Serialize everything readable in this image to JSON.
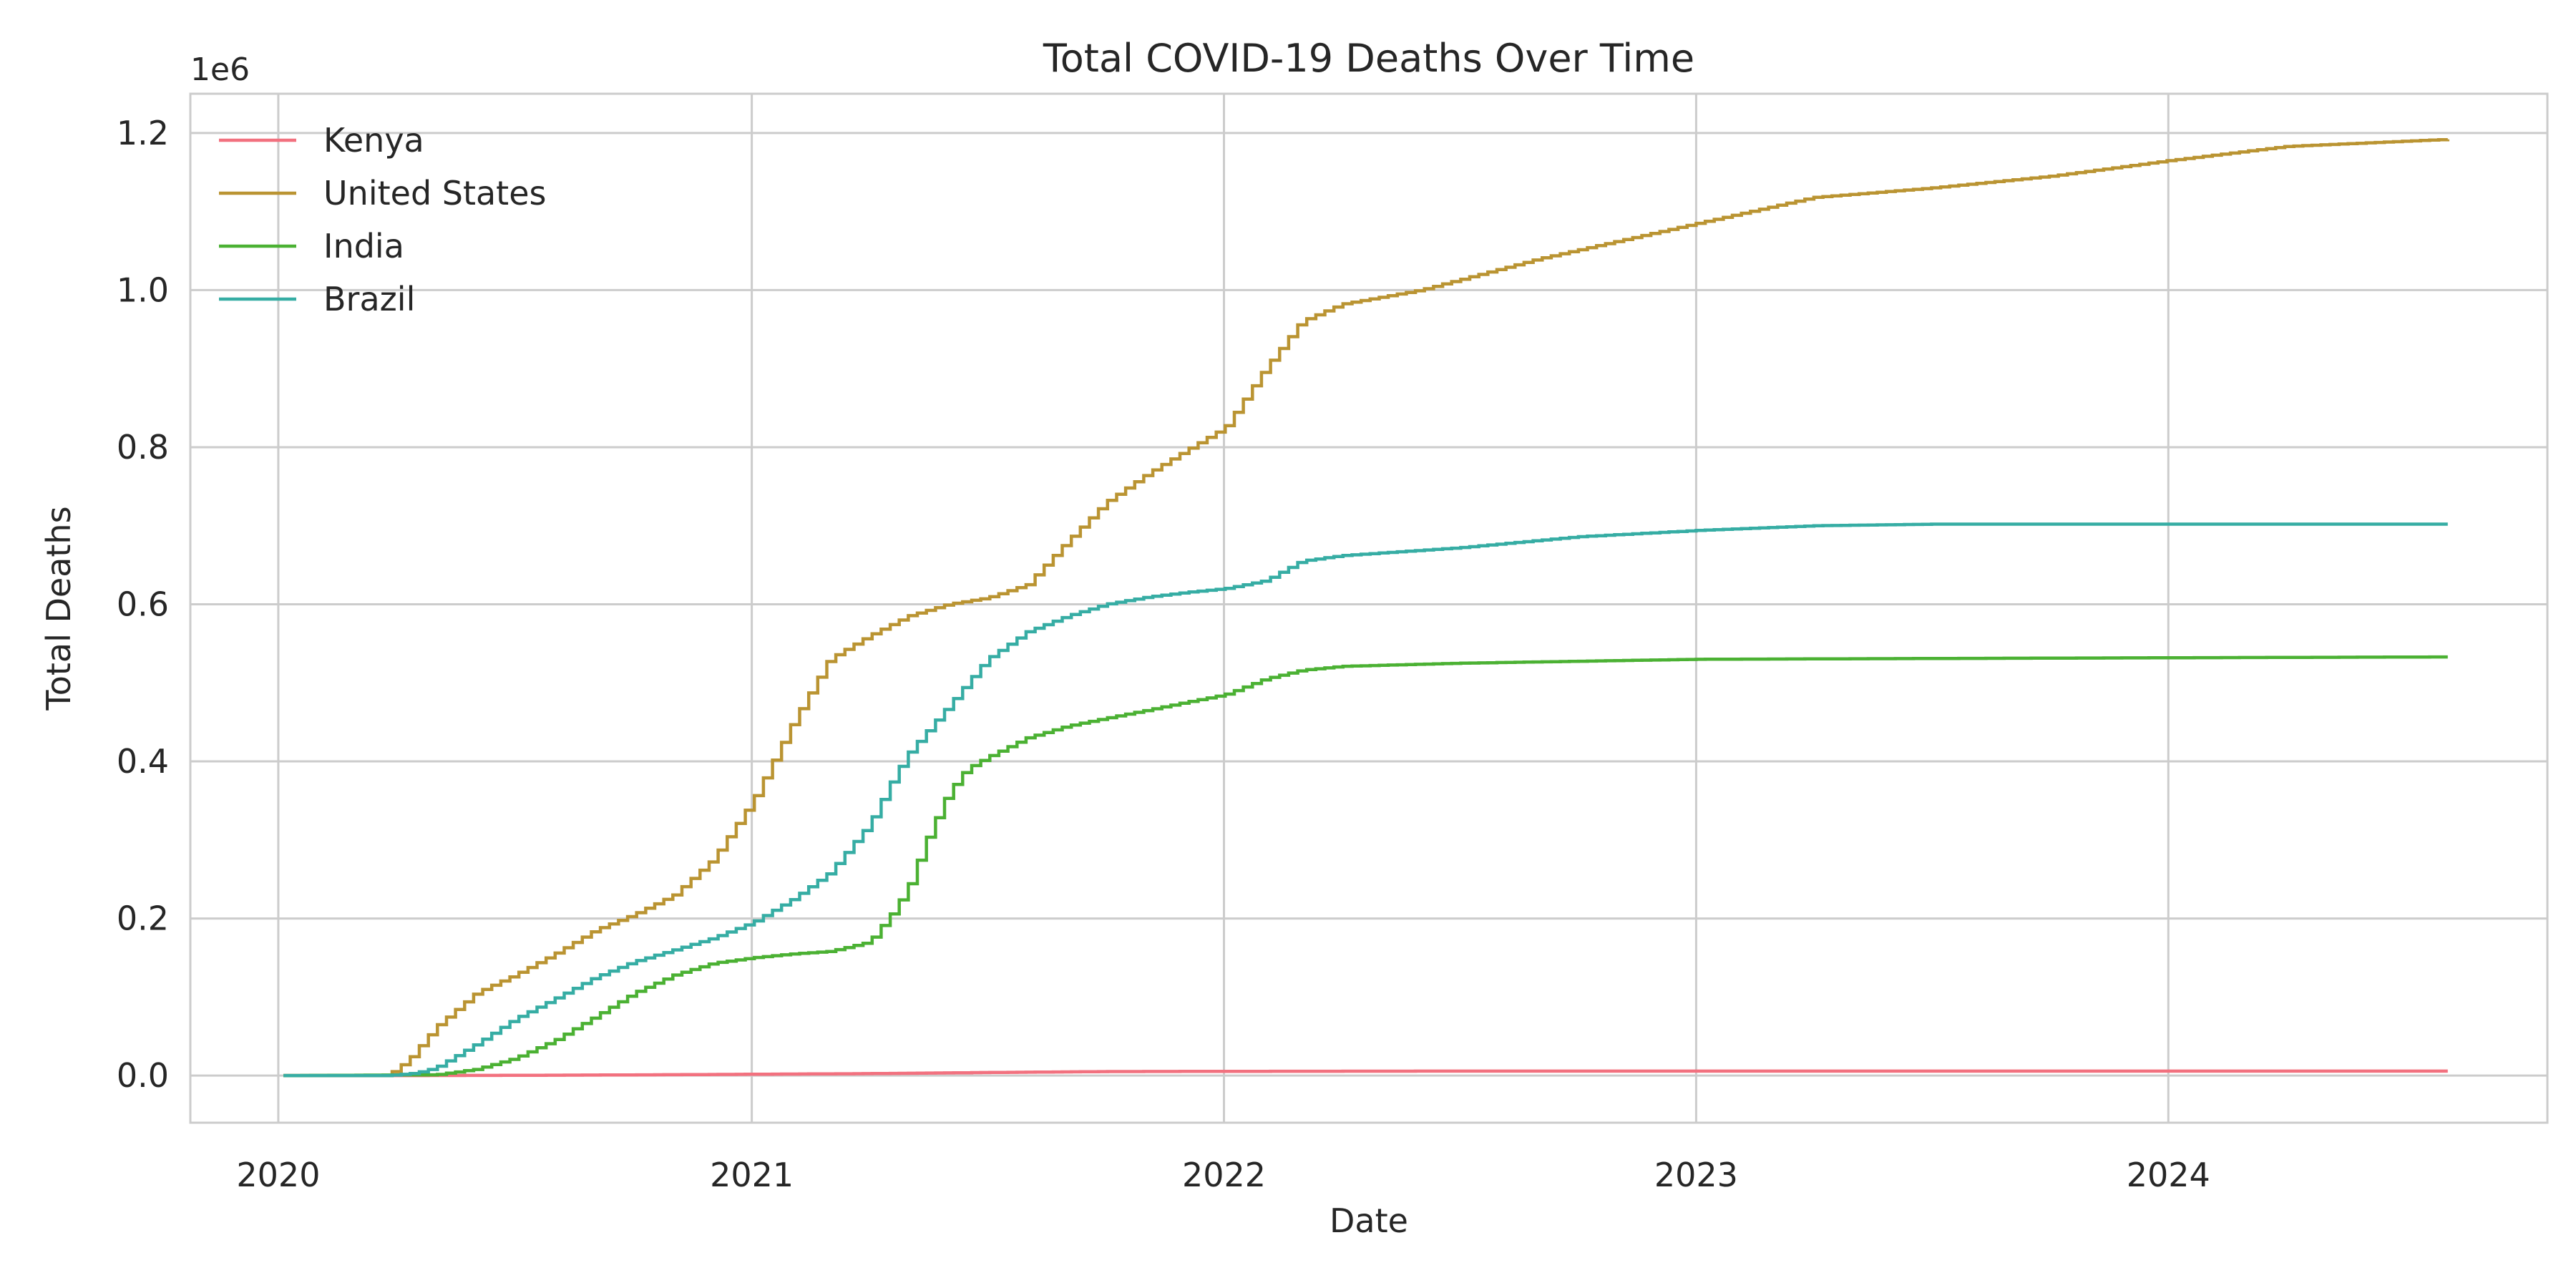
{
  "chart_data": {
    "type": "line",
    "title": "Total COVID-19 Deaths Over Time",
    "xlabel": "Date",
    "ylabel": "Total Deaths",
    "y_offset_label": "1e6",
    "x_axis": "date",
    "xlim": [
      "2019-10-25",
      "2024-10-20"
    ],
    "ylim": [
      -60000,
      1250000
    ],
    "x_ticks": [
      "2020-01-01",
      "2021-01-01",
      "2022-01-01",
      "2023-01-01",
      "2024-01-01"
    ],
    "x_tick_labels": [
      "2020",
      "2021",
      "2022",
      "2023",
      "2024"
    ],
    "y_ticks": [
      0,
      200000,
      400000,
      600000,
      800000,
      1000000,
      1200000
    ],
    "y_tick_labels": [
      "0.0",
      "0.2",
      "0.4",
      "0.6",
      "0.8",
      "1.0",
      "1.2"
    ],
    "grid": true,
    "legend_position": "top-left",
    "step": true,
    "series": [
      {
        "name": "Kenya",
        "color": "#f2717f",
        "points": [
          [
            "2020-01-05",
            0
          ],
          [
            "2020-04-01",
            0
          ],
          [
            "2020-07-01",
            300
          ],
          [
            "2020-10-01",
            900
          ],
          [
            "2021-01-01",
            1700
          ],
          [
            "2021-04-01",
            2500
          ],
          [
            "2021-07-01",
            3900
          ],
          [
            "2021-10-01",
            5100
          ],
          [
            "2022-01-01",
            5400
          ],
          [
            "2022-06-01",
            5650
          ],
          [
            "2023-01-01",
            5690
          ],
          [
            "2024-08-04",
            5700
          ]
        ]
      },
      {
        "name": "United States",
        "color": "#ba9432",
        "points": [
          [
            "2020-01-05",
            0
          ],
          [
            "2020-03-25",
            0
          ],
          [
            "2020-04-10",
            20000
          ],
          [
            "2020-05-01",
            62000
          ],
          [
            "2020-06-01",
            105000
          ],
          [
            "2020-07-01",
            128000
          ],
          [
            "2020-08-01",
            155000
          ],
          [
            "2020-09-01",
            185000
          ],
          [
            "2020-10-01",
            205000
          ],
          [
            "2020-11-01",
            230000
          ],
          [
            "2020-12-01",
            275000
          ],
          [
            "2021-01-01",
            350000
          ],
          [
            "2021-02-01",
            450000
          ],
          [
            "2021-03-01",
            530000
          ],
          [
            "2021-04-01",
            560000
          ],
          [
            "2021-05-01",
            585000
          ],
          [
            "2021-06-01",
            600000
          ],
          [
            "2021-07-01",
            608000
          ],
          [
            "2021-08-01",
            625000
          ],
          [
            "2021-09-01",
            680000
          ],
          [
            "2021-10-01",
            730000
          ],
          [
            "2021-11-01",
            765000
          ],
          [
            "2021-12-01",
            795000
          ],
          [
            "2022-01-01",
            825000
          ],
          [
            "2022-02-01",
            900000
          ],
          [
            "2022-03-01",
            960000
          ],
          [
            "2022-04-01",
            982000
          ],
          [
            "2022-06-01",
            1000000
          ],
          [
            "2022-09-01",
            1040000
          ],
          [
            "2023-01-01",
            1085000
          ],
          [
            "2023-04-01",
            1118000
          ],
          [
            "2023-07-01",
            1130000
          ],
          [
            "2023-10-01",
            1145000
          ],
          [
            "2024-01-01",
            1165000
          ],
          [
            "2024-04-01",
            1183000
          ],
          [
            "2024-08-04",
            1192000
          ]
        ]
      },
      {
        "name": "India",
        "color": "#4bb133",
        "points": [
          [
            "2020-01-05",
            0
          ],
          [
            "2020-05-01",
            1000
          ],
          [
            "2020-06-01",
            8000
          ],
          [
            "2020-07-01",
            22000
          ],
          [
            "2020-08-01",
            45000
          ],
          [
            "2020-09-01",
            75000
          ],
          [
            "2020-10-01",
            105000
          ],
          [
            "2020-11-01",
            128000
          ],
          [
            "2020-12-01",
            143000
          ],
          [
            "2021-01-01",
            150000
          ],
          [
            "2021-02-01",
            155000
          ],
          [
            "2021-03-01",
            158000
          ],
          [
            "2021-04-01",
            170000
          ],
          [
            "2021-04-20",
            210000
          ],
          [
            "2021-05-01",
            240000
          ],
          [
            "2021-05-15",
            300000
          ],
          [
            "2021-06-01",
            360000
          ],
          [
            "2021-06-15",
            390000
          ],
          [
            "2021-07-01",
            405000
          ],
          [
            "2021-08-01",
            430000
          ],
          [
            "2021-09-01",
            445000
          ],
          [
            "2021-10-01",
            455000
          ],
          [
            "2021-11-01",
            465000
          ],
          [
            "2021-12-01",
            475000
          ],
          [
            "2022-01-01",
            485000
          ],
          [
            "2022-02-01",
            505000
          ],
          [
            "2022-03-01",
            516000
          ],
          [
            "2022-04-01",
            521000
          ],
          [
            "2022-07-01",
            525000
          ],
          [
            "2023-01-01",
            530000
          ],
          [
            "2023-07-01",
            531000
          ],
          [
            "2024-08-04",
            533000
          ]
        ]
      },
      {
        "name": "Brazil",
        "color": "#36ada4",
        "points": [
          [
            "2020-01-05",
            0
          ],
          [
            "2020-03-25",
            0
          ],
          [
            "2020-04-15",
            3000
          ],
          [
            "2020-05-01",
            10000
          ],
          [
            "2020-06-01",
            40000
          ],
          [
            "2020-07-01",
            72000
          ],
          [
            "2020-08-01",
            98000
          ],
          [
            "2020-09-01",
            125000
          ],
          [
            "2020-10-01",
            145000
          ],
          [
            "2020-11-01",
            160000
          ],
          [
            "2020-12-01",
            175000
          ],
          [
            "2021-01-01",
            195000
          ],
          [
            "2021-02-01",
            225000
          ],
          [
            "2021-03-01",
            258000
          ],
          [
            "2021-04-01",
            320000
          ],
          [
            "2021-04-20",
            380000
          ],
          [
            "2021-05-01",
            410000
          ],
          [
            "2021-06-01",
            470000
          ],
          [
            "2021-07-01",
            530000
          ],
          [
            "2021-08-01",
            565000
          ],
          [
            "2021-09-01",
            585000
          ],
          [
            "2021-10-01",
            600000
          ],
          [
            "2021-11-01",
            609000
          ],
          [
            "2021-12-01",
            615000
          ],
          [
            "2022-01-01",
            620000
          ],
          [
            "2022-02-01",
            630000
          ],
          [
            "2022-03-01",
            655000
          ],
          [
            "2022-04-01",
            662000
          ],
          [
            "2022-07-01",
            672000
          ],
          [
            "2022-10-01",
            686000
          ],
          [
            "2023-01-01",
            694000
          ],
          [
            "2023-04-01",
            700000
          ],
          [
            "2023-07-01",
            702000
          ],
          [
            "2024-08-04",
            702000
          ]
        ]
      }
    ]
  }
}
